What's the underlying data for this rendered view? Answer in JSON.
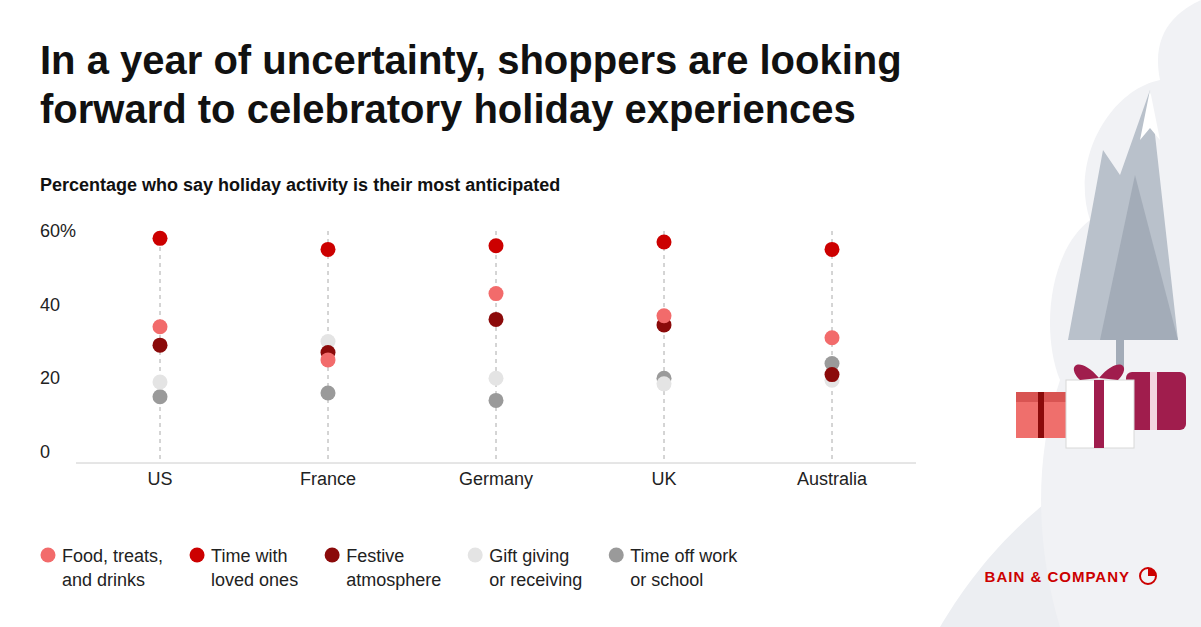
{
  "chart_data": {
    "type": "dot",
    "title": "In a year of uncertainty, shoppers are looking forward to celebratory holiday experiences",
    "subtitle": "Percentage who say holiday activity is their most anticipated",
    "brand": "BAIN & COMPANY",
    "categories": [
      "US",
      "France",
      "Germany",
      "UK",
      "Australia"
    ],
    "series": [
      {
        "name": "Food, treats, and drinks",
        "color": "#f26b6b",
        "values": [
          34,
          25,
          43,
          37,
          31
        ]
      },
      {
        "name": "Time with loved ones",
        "color": "#cc0000",
        "values": [
          58,
          55,
          56,
          57,
          55
        ]
      },
      {
        "name": "Festive atmosphere",
        "color": "#8b0a0a",
        "values": [
          29,
          27,
          36,
          34.5,
          21
        ]
      },
      {
        "name": "Gift giving or receiving",
        "color": "#e4e4e4",
        "values": [
          19,
          30,
          20,
          18.5,
          19.5
        ]
      },
      {
        "name": "Time off work or school",
        "color": "#9a9a9a",
        "values": [
          15,
          16,
          14,
          20,
          24
        ]
      }
    ],
    "ylim": [
      -3,
      60
    ],
    "yticks": [
      0,
      20,
      40,
      {
        "value": 60,
        "label": "60%"
      }
    ],
    "grid": false,
    "legend": "bottom",
    "marker": "circle"
  }
}
